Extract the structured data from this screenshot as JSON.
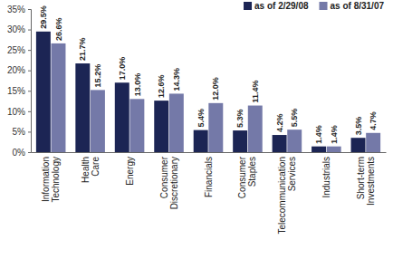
{
  "chart_data": {
    "type": "bar",
    "categories": [
      "Information Technology",
      "Health Care",
      "Energy",
      "Consumer Discretionary",
      "Financials",
      "Consumer Staples",
      "Telecommunication Services",
      "Industrials",
      "Short-term Investments"
    ],
    "series": [
      {
        "name": "as of 2/29/08",
        "color": "#1c2554",
        "values": [
          29.5,
          21.7,
          17.0,
          12.6,
          5.4,
          5.3,
          4.2,
          1.4,
          3.5
        ],
        "value_labels": [
          "29.5%",
          "21.7%",
          "17.0%",
          "12.6%",
          "5.4%",
          "5.3%",
          "4.2%",
          "1.4%",
          "3.5%"
        ]
      },
      {
        "name": "as of 8/31/07",
        "color": "#7479a8",
        "values": [
          26.6,
          15.2,
          13.0,
          14.3,
          12.0,
          11.4,
          5.5,
          1.4,
          4.7
        ],
        "value_labels": [
          "26.6%",
          "15.2%",
          "13.0%",
          "14.3%",
          "12.0%",
          "11.4%",
          "5.5%",
          "1.4%",
          "4.7%"
        ]
      }
    ],
    "ylim": [
      0,
      35
    ],
    "yticks": [
      {
        "value": 0,
        "label": "0%"
      },
      {
        "value": 5,
        "label": "5%"
      },
      {
        "value": 10,
        "label": "10%"
      },
      {
        "value": 15,
        "label": "15%"
      },
      {
        "value": 20,
        "label": "20%"
      },
      {
        "value": 25,
        "label": "25%"
      },
      {
        "value": 30,
        "label": "30%"
      },
      {
        "value": 35,
        "label": "35%"
      }
    ],
    "grid": false,
    "legend": "top-right",
    "data_labels": true
  }
}
